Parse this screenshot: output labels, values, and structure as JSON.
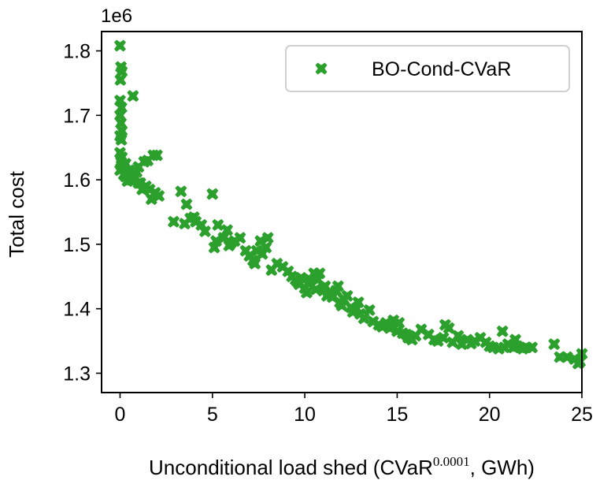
{
  "chart_data": {
    "type": "scatter",
    "title": "",
    "xlabel_main": "Unconditional load shed (CVaR",
    "xlabel_superscript": "0.0001",
    "xlabel_tail": ", GWh)",
    "ylabel": "Total cost",
    "y_offset_label": "1e6",
    "xlim": [
      -1,
      25
    ],
    "ylim": [
      1.27,
      1.83
    ],
    "xticks": [
      0,
      5,
      10,
      15,
      20,
      25
    ],
    "yticks": [
      1.3,
      1.4,
      1.5,
      1.6,
      1.7,
      1.8
    ],
    "xtick_labels": [
      "0",
      "5",
      "10",
      "15",
      "20",
      "25"
    ],
    "ytick_labels": [
      "1.3",
      "1.4",
      "1.5",
      "1.6",
      "1.7",
      "1.8"
    ],
    "legend": {
      "label": "BO-Cond-CVaR",
      "position": "top-right"
    },
    "color": "#2ca02c",
    "series": [
      {
        "name": "BO-Cond-CVaR",
        "x": [
          0.0,
          0.05,
          0.1,
          0.02,
          0.0,
          0.08,
          0.0,
          0.05,
          0.1,
          0.0,
          0.07,
          0.0,
          0.1,
          0.05,
          0.0,
          0.08,
          0.7,
          0.3,
          0.5,
          0.2,
          0.6,
          0.9,
          1.0,
          1.3,
          1.5,
          0.4,
          0.8,
          1.1,
          1.4,
          1.8,
          2.0,
          1.6,
          1.9,
          0.3,
          0.6,
          1.2,
          1.7,
          2.1,
          0.5,
          1.0,
          2.9,
          3.3,
          3.5,
          3.8,
          4.1,
          4.4,
          3.6,
          4.0,
          4.6,
          5.0,
          5.2,
          5.3,
          5.6,
          5.8,
          5.9,
          6.2,
          6.5,
          6.0,
          6.8,
          5.1,
          7.0,
          7.2,
          7.4,
          7.6,
          7.9,
          8.0,
          7.3,
          7.7,
          8.2,
          8.5,
          8.8,
          9.1,
          9.3,
          9.5,
          9.6,
          9.7,
          9.8,
          10.0,
          10.1,
          10.2,
          10.3,
          10.5,
          10.6,
          10.7,
          10.8,
          11.0,
          11.1,
          11.2,
          11.3,
          11.5,
          11.7,
          11.8,
          11.9,
          12.0,
          12.1,
          12.3,
          12.5,
          12.6,
          12.8,
          12.9,
          13.0,
          13.2,
          13.5,
          13.7,
          14.0,
          14.2,
          14.4,
          14.6,
          14.8,
          15.0,
          15.1,
          15.3,
          15.5,
          15.6,
          15.8,
          16.0,
          16.3,
          16.7,
          17.0,
          17.2,
          17.5,
          17.8,
          18.0,
          18.3,
          18.5,
          18.8,
          19.0,
          19.2,
          19.5,
          19.8,
          20.0,
          20.2,
          20.5,
          20.8,
          21.0,
          21.3,
          21.5,
          21.8,
          22.0,
          22.3,
          23.5,
          23.8,
          24.2,
          24.6,
          24.9,
          25.0,
          24.8,
          20.7,
          21.4,
          17.6
        ],
        "y": [
          1.808,
          1.775,
          1.768,
          1.755,
          1.723,
          1.712,
          1.7,
          1.688,
          1.676,
          1.668,
          1.662,
          1.642,
          1.635,
          1.628,
          1.615,
          1.622,
          1.73,
          1.625,
          1.615,
          1.608,
          1.6,
          1.612,
          1.62,
          1.628,
          1.63,
          1.598,
          1.605,
          1.595,
          1.59,
          1.638,
          1.638,
          1.585,
          1.58,
          1.605,
          1.61,
          1.585,
          1.57,
          1.575,
          1.6,
          1.595,
          1.535,
          1.582,
          1.532,
          1.54,
          1.535,
          1.53,
          1.562,
          1.542,
          1.52,
          1.578,
          1.505,
          1.53,
          1.51,
          1.522,
          1.498,
          1.505,
          1.51,
          1.502,
          1.49,
          1.495,
          1.482,
          1.475,
          1.49,
          1.505,
          1.495,
          1.51,
          1.47,
          1.485,
          1.46,
          1.47,
          1.465,
          1.458,
          1.45,
          1.445,
          1.442,
          1.438,
          1.448,
          1.432,
          1.425,
          1.44,
          1.445,
          1.455,
          1.43,
          1.445,
          1.455,
          1.428,
          1.435,
          1.42,
          1.425,
          1.418,
          1.428,
          1.435,
          1.41,
          1.405,
          1.415,
          1.42,
          1.402,
          1.395,
          1.4,
          1.41,
          1.392,
          1.385,
          1.398,
          1.38,
          1.375,
          1.372,
          1.378,
          1.37,
          1.382,
          1.365,
          1.378,
          1.362,
          1.36,
          1.355,
          1.352,
          1.358,
          1.368,
          1.36,
          1.352,
          1.35,
          1.355,
          1.37,
          1.348,
          1.358,
          1.345,
          1.352,
          1.346,
          1.35,
          1.355,
          1.348,
          1.342,
          1.34,
          1.338,
          1.34,
          1.345,
          1.34,
          1.342,
          1.338,
          1.34,
          1.34,
          1.345,
          1.325,
          1.325,
          1.322,
          1.318,
          1.33,
          1.315,
          1.365,
          1.352,
          1.375
        ]
      }
    ]
  }
}
